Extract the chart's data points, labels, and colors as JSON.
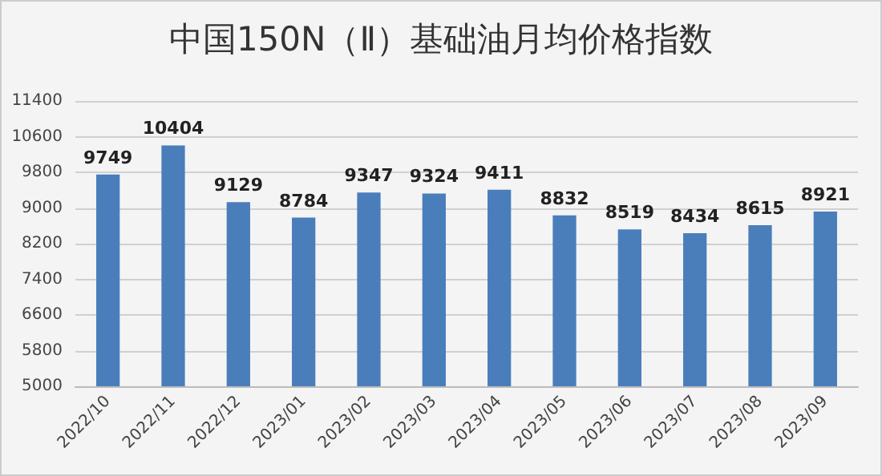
{
  "chart_data": {
    "type": "bar",
    "title": "中国150N（Ⅱ）基础油月均价格指数",
    "categories": [
      "2022/10",
      "2022/11",
      "2022/12",
      "2023/01",
      "2023/02",
      "2023/03",
      "2023/04",
      "2023/05",
      "2023/06",
      "2023/07",
      "2023/08",
      "2023/09"
    ],
    "values": [
      9749,
      10404,
      9129,
      8784,
      9347,
      9324,
      9411,
      8832,
      8519,
      8434,
      8615,
      8921
    ],
    "color": "#4a7ebb",
    "ylim": [
      5000,
      11400
    ],
    "yticks": [
      5000,
      5800,
      6600,
      7400,
      8200,
      9000,
      9800,
      10600,
      11400
    ],
    "grid": "y",
    "data_labels": true
  }
}
